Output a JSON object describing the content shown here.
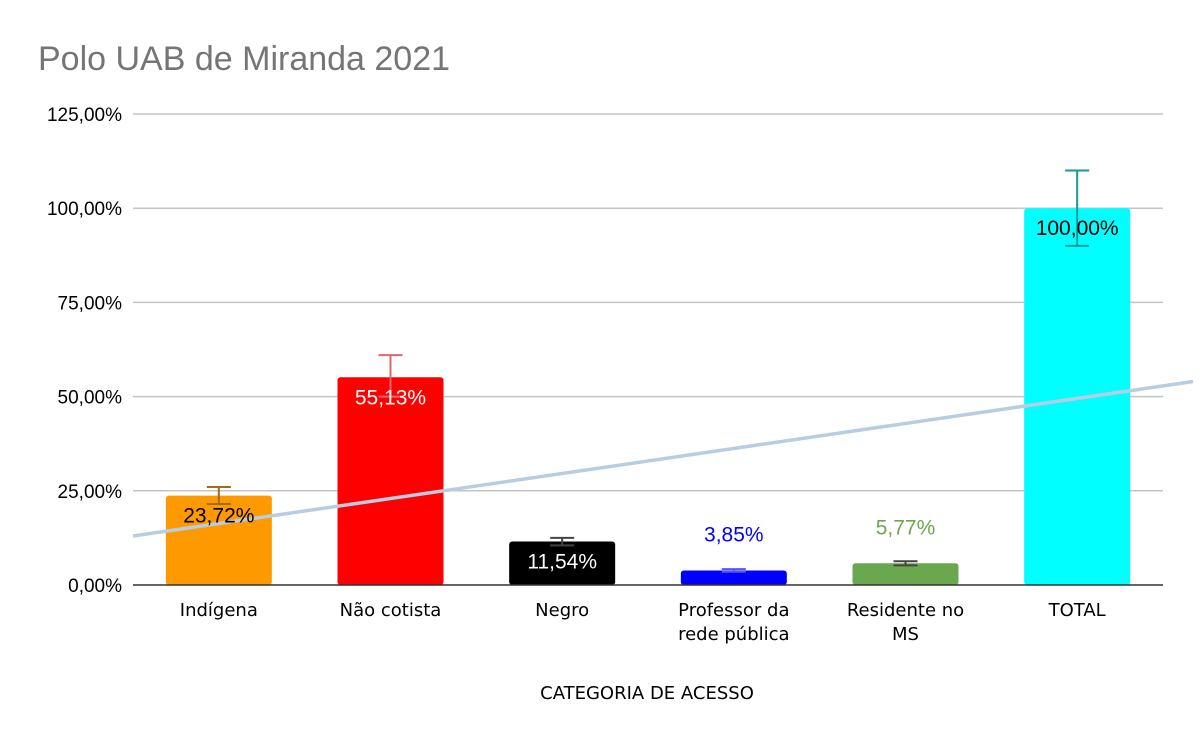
{
  "chart_data": {
    "type": "bar",
    "title": "Polo UAB de Miranda 2021",
    "xlabel": "CATEGORIA DE ACESSO",
    "ylabel": "",
    "ylim": [
      0,
      125
    ],
    "yticks": [
      0,
      25,
      50,
      75,
      100,
      125
    ],
    "ytick_labels": [
      "0,00%",
      "25,00%",
      "50,00%",
      "75,00%",
      "100,00%",
      "125,00%"
    ],
    "grid": true,
    "legend": "none",
    "categories": [
      [
        "Indígena"
      ],
      [
        "Não cotista"
      ],
      [
        "Negro"
      ],
      [
        "Professor da",
        "rede pública"
      ],
      [
        "Residente no",
        "MS"
      ],
      [
        "TOTAL"
      ]
    ],
    "values": [
      23.72,
      55.13,
      11.54,
      3.85,
      5.77,
      100
    ],
    "data_labels": [
      "23,72%",
      "55,13%",
      "11,54%",
      "3,85%",
      "5,77%",
      "100,00%"
    ],
    "bar_colors": [
      "#ff9900",
      "#ff0000",
      "#000000",
      "#0000ff",
      "#6aa84f",
      "#00ffff"
    ],
    "label_colors": [
      "#000000",
      "#ffffff",
      "#ffffff",
      "#0000ff",
      "#6aa84f",
      "#000000"
    ],
    "error_colors": [
      "#a06b1a",
      "#e06666",
      "#444444",
      "#5555ff",
      "#444444",
      "#129999"
    ],
    "error_bars": [
      [
        21.5,
        26
      ],
      [
        50,
        61
      ],
      [
        10.5,
        12.5
      ],
      [
        3.5,
        4.2
      ],
      [
        5.2,
        6.3
      ],
      [
        90,
        110
      ]
    ],
    "trendline": {
      "type": "linear",
      "color": "#b7cde3",
      "start": 13,
      "end": 54
    }
  }
}
